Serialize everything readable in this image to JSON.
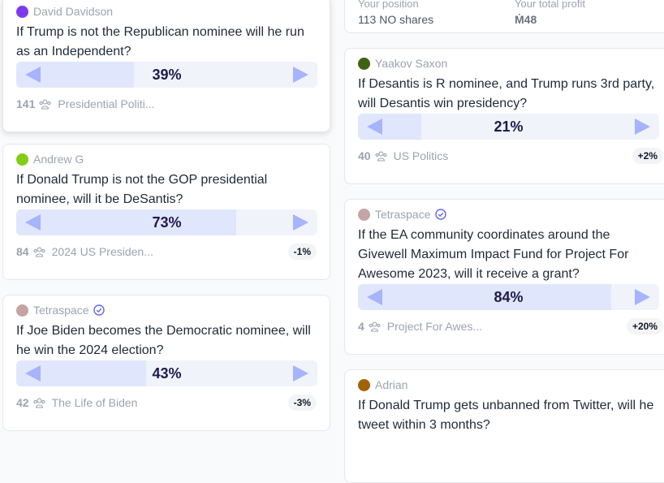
{
  "position": {
    "label": "Your position",
    "value": "113 NO shares",
    "profit_label": "Your total profit",
    "profit": "Ṁ48"
  },
  "markets": [
    {
      "author": "David Davidson",
      "question": "If Trump is not the Republican nominee will he run as an Independent?",
      "prob": 39,
      "prob_label": "39%",
      "traders": 141,
      "group": "Presidential Politi..."
    },
    {
      "author": "Andrew G",
      "question": "If Donald Trump is not the GOP presidential nominee, will it be DeSantis?",
      "prob": 73,
      "prob_label": "73%",
      "traders": 84,
      "group": "2024 US Presiden...",
      "change": "-1%"
    },
    {
      "author": "Tetraspace",
      "verified": true,
      "question": "If Joe Biden becomes the Democratic nominee, will he win the 2024 election?",
      "prob": 43,
      "prob_label": "43%",
      "traders": 42,
      "group": "The Life of Biden",
      "change": "-3%"
    },
    {
      "author": "Yaakov Saxon",
      "question": "If Desantis is R nominee, and Trump runs 3rd party, will Desantis win presidency?",
      "prob": 21,
      "prob_label": "21%",
      "traders": 40,
      "group": "US Politics",
      "change": "+2%"
    },
    {
      "author": "Tetraspace",
      "verified": true,
      "question": "If the EA community coordinates around the Givewell Maximum Impact Fund for Project For Awesome 2023, will it receive a grant?",
      "prob": 84,
      "prob_label": "84%",
      "traders": 4,
      "group": "Project For Awes...",
      "change": "+20%"
    },
    {
      "author": "Adrian",
      "question": "If Donald Trump gets unbanned from Twitter, will he tweet within 3 months?"
    }
  ]
}
